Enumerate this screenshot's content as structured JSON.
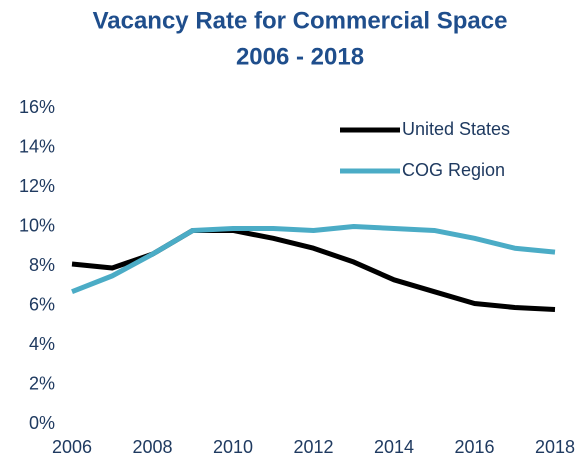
{
  "chart_data": {
    "type": "line",
    "title": "Vacancy Rate for Commercial Space",
    "subtitle": "2006 - 2018",
    "x": [
      2006,
      2007,
      2008,
      2009,
      2010,
      2011,
      2012,
      2013,
      2014,
      2015,
      2016,
      2017,
      2018
    ],
    "series": [
      {
        "name": "United States",
        "color": "#000000",
        "values": [
          8.1,
          7.9,
          8.6,
          9.8,
          9.8,
          9.4,
          8.9,
          8.2,
          7.3,
          6.7,
          6.1,
          5.9,
          5.8
        ]
      },
      {
        "name": "COG Region",
        "color": "#4bacc6",
        "values": [
          6.7,
          7.5,
          8.6,
          9.8,
          9.9,
          9.9,
          9.8,
          10.0,
          9.9,
          9.8,
          9.4,
          8.9,
          8.7
        ]
      }
    ],
    "xlim": [
      2006,
      2018
    ],
    "xticks": [
      2006,
      2008,
      2010,
      2012,
      2014,
      2016,
      2018
    ],
    "ylim": [
      0,
      16
    ],
    "yticks": [
      {
        "value": 0,
        "label": "0%"
      },
      {
        "value": 2,
        "label": "2%"
      },
      {
        "value": 4,
        "label": "4%"
      },
      {
        "value": 6,
        "label": "6%"
      },
      {
        "value": 8,
        "label": "8%"
      },
      {
        "value": 10,
        "label": "10%"
      },
      {
        "value": 12,
        "label": "12%"
      },
      {
        "value": 14,
        "label": "14%"
      },
      {
        "value": 16,
        "label": "16%"
      }
    ],
    "legend": "upper right",
    "grid": false
  }
}
